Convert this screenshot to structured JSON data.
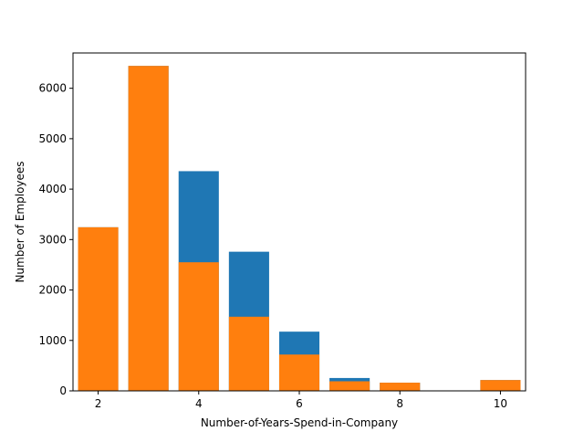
{
  "chart_data": {
    "type": "bar",
    "title": "",
    "xlabel": "Number-of-Years-Spend-in-Company",
    "ylabel": "Number of Employees",
    "xlim": [
      1.5,
      10.5
    ],
    "ylim": [
      0,
      6700
    ],
    "xticks": [
      2,
      4,
      6,
      8,
      10
    ],
    "yticks": [
      0,
      1000,
      2000,
      3000,
      4000,
      5000,
      6000
    ],
    "grid": false,
    "legend": "none",
    "x": [
      2,
      3,
      4,
      5,
      6,
      7,
      8,
      10
    ],
    "series": [
      {
        "color": "#1f77b4",
        "values": [
          3244,
          6443,
          4356,
          2759,
          1174,
          255,
          162,
          214
        ]
      },
      {
        "color": "#ff7f0e",
        "values": [
          3244,
          6443,
          2550,
          1470,
          720,
          190,
          162,
          214
        ]
      }
    ]
  }
}
